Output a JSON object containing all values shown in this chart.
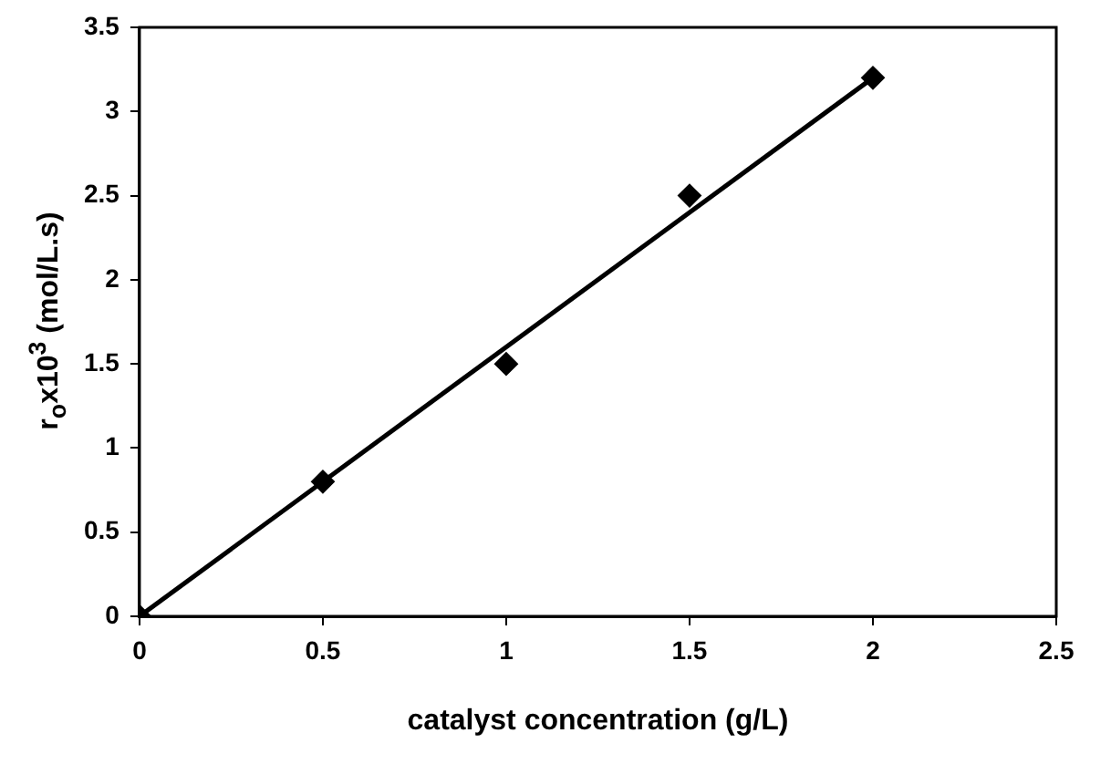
{
  "chart_data": {
    "type": "scatter",
    "xlabel": "catalyst concentration (g/L)",
    "ylabel": "r$_{o}$x10$^{3}$ (mol/L.s)",
    "xlim": [
      0,
      2.5
    ],
    "xticks": [
      0,
      0.5,
      1,
      1.5,
      2,
      2.5
    ],
    "ylim": [
      0,
      3.5
    ],
    "yticks": [
      0,
      0.5,
      1,
      1.5,
      2,
      2.5,
      3,
      3.5
    ],
    "grid": false,
    "legend": false,
    "series": [
      {
        "type": "scatter",
        "color": "#000000",
        "marker": "diamond",
        "x": [
          0,
          0.5,
          1,
          1.5,
          2
        ],
        "values": [
          0,
          0.8,
          1.5,
          2.5,
          3.2
        ]
      },
      {
        "type": "line",
        "color": "#000000",
        "marker": "none",
        "x": [
          0,
          2
        ],
        "values": [
          0,
          3.2
        ]
      }
    ]
  }
}
